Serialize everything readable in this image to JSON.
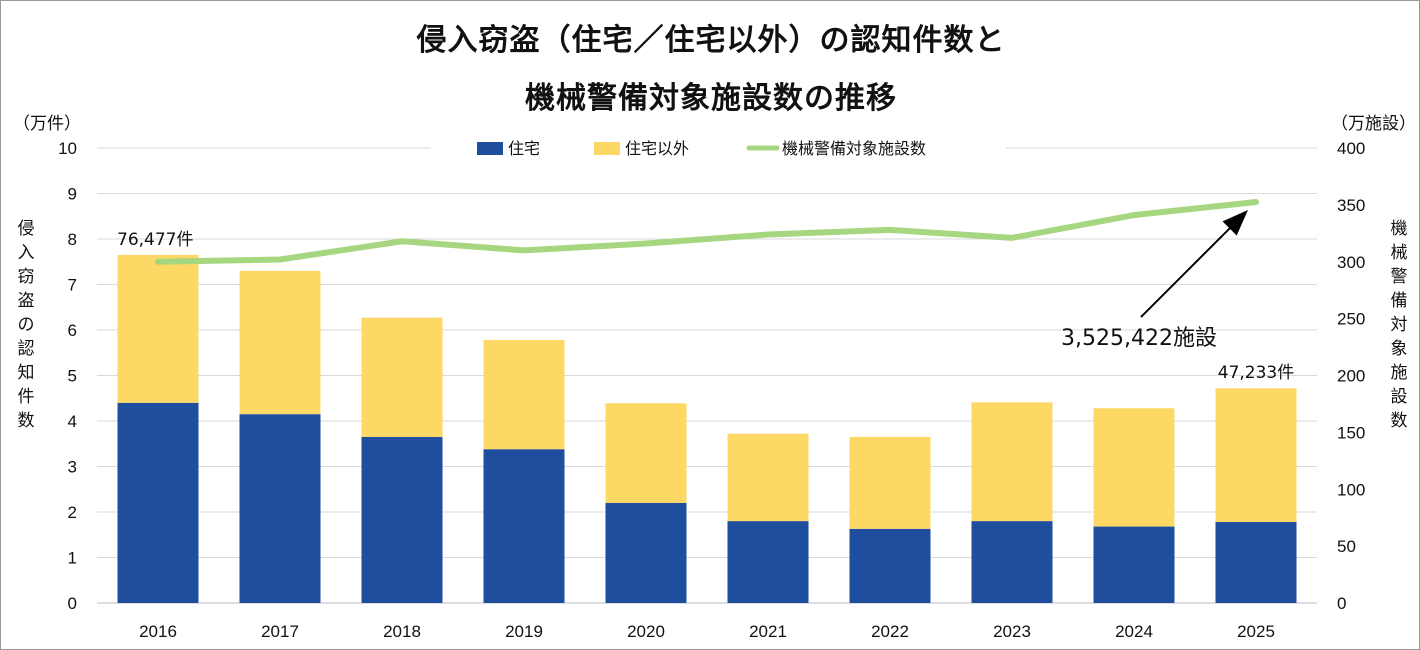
{
  "chart_data": {
    "type": "bar",
    "title_line1": "侵入窃盗（住宅／住宅以外）の認知件数と",
    "title_line2": "機械警備対象施設数の推移",
    "left_axis": {
      "unit": "（万件）",
      "label": "侵入窃盗の認知件数",
      "ylim": [
        0,
        10
      ],
      "ticks": [
        "0",
        "1",
        "2",
        "3",
        "4",
        "5",
        "6",
        "7",
        "8",
        "9",
        "10"
      ]
    },
    "right_axis": {
      "unit": "（万施設）",
      "label": "機械警備対象施設数",
      "ylim": [
        0,
        400
      ],
      "ticks": [
        "0",
        "50",
        "100",
        "150",
        "200",
        "250",
        "300",
        "350",
        "400"
      ]
    },
    "categories": [
      "2016",
      "2017",
      "2018",
      "2019",
      "2020",
      "2021",
      "2022",
      "2023",
      "2024",
      "2025"
    ],
    "series": [
      {
        "name": "住宅",
        "kind": "stacked-bar",
        "axis": "left",
        "color": "#1f4e9f",
        "values": [
          4.4,
          4.15,
          3.65,
          3.38,
          2.2,
          1.8,
          1.63,
          1.8,
          1.68,
          1.78
        ]
      },
      {
        "name": "住宅以外",
        "kind": "stacked-bar",
        "axis": "left",
        "color": "#fdd865",
        "values": [
          3.25,
          3.15,
          2.62,
          2.4,
          2.19,
          1.92,
          2.02,
          2.61,
          2.6,
          2.94
        ]
      },
      {
        "name": "機械警備対象施設数",
        "kind": "line",
        "axis": "right",
        "color": "#a6d67f",
        "values": [
          300,
          302,
          318,
          310,
          316,
          324,
          328,
          321,
          341,
          352.5
        ]
      }
    ],
    "annotations": {
      "first_total": "76,477件",
      "last_total": "47,233件",
      "last_facilities": "3,525,422施設"
    },
    "grid": true,
    "legend_position": "top-center"
  }
}
